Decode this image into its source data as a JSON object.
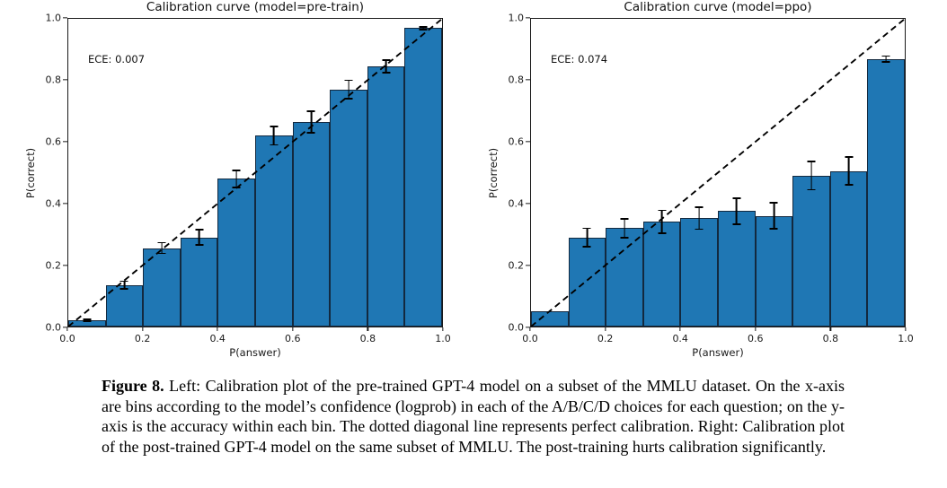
{
  "caption": {
    "label": "Figure 8.",
    "text": "Left: Calibration plot of the pre-trained GPT-4 model on a subset of the MMLU dataset. On the x-axis are bins according to the model’s confidence (logprob) in each of the A/B/C/D choices for each question; on the y-axis is the accuracy within each bin. The dotted diagonal line represents perfect calibration. Right: Calibration plot of the post-trained GPT-4 model on the same subset of MMLU. The post-training hurts calibration significantly."
  },
  "colors": {
    "bar_fill": "#1f77b4",
    "bar_edge": "#13293f",
    "axis": "#1a1a1a",
    "diagonal": "#000000"
  },
  "chart_data": [
    {
      "type": "bar",
      "title": "Calibration curve (model=pre-train)",
      "annotation": "ECE: 0.007",
      "xlabel": "P(answer)",
      "ylabel": "P(correct)",
      "xlim": [
        0.0,
        1.0
      ],
      "ylim": [
        0.0,
        1.0
      ],
      "grid": false,
      "legend": null,
      "diagonal_reference": "dashed y=x line (perfect calibration)",
      "xticks": [
        "0.0",
        "0.2",
        "0.4",
        "0.6",
        "0.8",
        "1.0"
      ],
      "yticks": [
        "0.0",
        "0.2",
        "0.4",
        "0.6",
        "0.8",
        "1.0"
      ],
      "bin_edges": [
        0.0,
        0.1,
        0.2,
        0.3,
        0.4,
        0.5,
        0.6,
        0.7,
        0.8,
        0.9,
        1.0
      ],
      "values": [
        0.02,
        0.135,
        0.255,
        0.29,
        0.48,
        0.62,
        0.665,
        0.77,
        0.845,
        0.97
      ],
      "errors": [
        0.005,
        0.015,
        0.02,
        0.027,
        0.03,
        0.032,
        0.037,
        0.033,
        0.023,
        0.007
      ]
    },
    {
      "type": "bar",
      "title": "Calibration curve (model=ppo)",
      "annotation": "ECE: 0.074",
      "xlabel": "P(answer)",
      "ylabel": "P(correct)",
      "xlim": [
        0.0,
        1.0
      ],
      "ylim": [
        0.0,
        1.0
      ],
      "grid": false,
      "legend": null,
      "diagonal_reference": "dashed y=x line (perfect calibration)",
      "xticks": [
        "0.0",
        "0.2",
        "0.4",
        "0.6",
        "0.8",
        "1.0"
      ],
      "yticks": [
        "0.0",
        "0.2",
        "0.4",
        "0.6",
        "0.8",
        "1.0"
      ],
      "bin_edges": [
        0.0,
        0.1,
        0.2,
        0.3,
        0.4,
        0.5,
        0.6,
        0.7,
        0.8,
        0.9,
        1.0
      ],
      "values": [
        0.05,
        0.29,
        0.32,
        0.34,
        0.352,
        0.375,
        0.36,
        0.49,
        0.505,
        0.87
      ],
      "errors": [
        0,
        0.032,
        0.033,
        0.04,
        0.038,
        0.045,
        0.045,
        0.048,
        0.048,
        0.012
      ]
    }
  ]
}
